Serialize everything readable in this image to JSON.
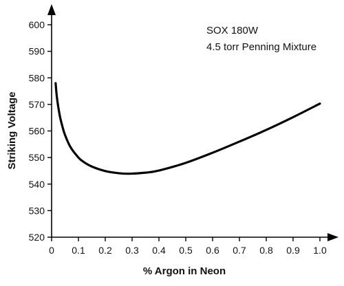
{
  "chart_data": {
    "type": "line",
    "title": "",
    "xlabel": "% Argon in Neon",
    "ylabel": "Striking Voltage",
    "annotations": [
      "SOX 180W",
      "4.5 torr Penning Mixture"
    ],
    "xlim": [
      0,
      1.0
    ],
    "ylim": [
      520,
      600
    ],
    "x_ticks": [
      "0",
      "0.1",
      "0.2",
      "0.3",
      "0.4",
      "0.5",
      "0.6",
      "0.7",
      "0.8",
      "0.9",
      "1.0"
    ],
    "y_ticks": [
      "520",
      "530",
      "540",
      "550",
      "560",
      "570",
      "580",
      "590",
      "600"
    ],
    "grid": false,
    "legend": "none",
    "colors": {
      "line": "#000000",
      "axis": "#000000"
    },
    "series": [
      {
        "x": [
          0.015,
          0.02,
          0.03,
          0.04,
          0.05,
          0.07,
          0.1,
          0.12,
          0.15,
          0.2,
          0.25,
          0.29,
          0.35,
          0.4,
          0.5,
          0.6,
          0.7,
          0.8,
          0.9,
          1.0
        ],
        "values": [
          578.0,
          572.5,
          566.0,
          561.8,
          558.5,
          554.0,
          550.0,
          548.3,
          546.6,
          544.9,
          544.1,
          543.9,
          544.3,
          545.1,
          548.0,
          551.8,
          556.0,
          560.4,
          565.2,
          570.3
        ]
      }
    ]
  }
}
